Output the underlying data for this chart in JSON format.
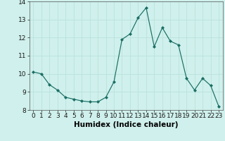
{
  "x": [
    0,
    1,
    2,
    3,
    4,
    5,
    6,
    7,
    8,
    9,
    10,
    11,
    12,
    13,
    14,
    15,
    16,
    17,
    18,
    19,
    20,
    21,
    22,
    23
  ],
  "y": [
    10.1,
    10.0,
    9.4,
    9.1,
    8.7,
    8.6,
    8.5,
    8.45,
    8.45,
    8.7,
    9.55,
    11.9,
    12.2,
    13.1,
    13.65,
    11.5,
    12.55,
    11.8,
    11.6,
    9.75,
    9.1,
    9.75,
    9.35,
    8.2
  ],
  "line_color": "#1a6e64",
  "marker_color": "#1a6e64",
  "bg_color": "#cff0ec",
  "grid_color": "#b8e0db",
  "xlabel": "Humidex (Indice chaleur)",
  "ylim": [
    8,
    14
  ],
  "xlim": [
    -0.5,
    23.5
  ],
  "yticks": [
    8,
    9,
    10,
    11,
    12,
    13,
    14
  ],
  "xticks": [
    0,
    1,
    2,
    3,
    4,
    5,
    6,
    7,
    8,
    9,
    10,
    11,
    12,
    13,
    14,
    15,
    16,
    17,
    18,
    19,
    20,
    21,
    22,
    23
  ],
  "tick_label_fontsize": 6.5,
  "xlabel_fontsize": 7.5
}
